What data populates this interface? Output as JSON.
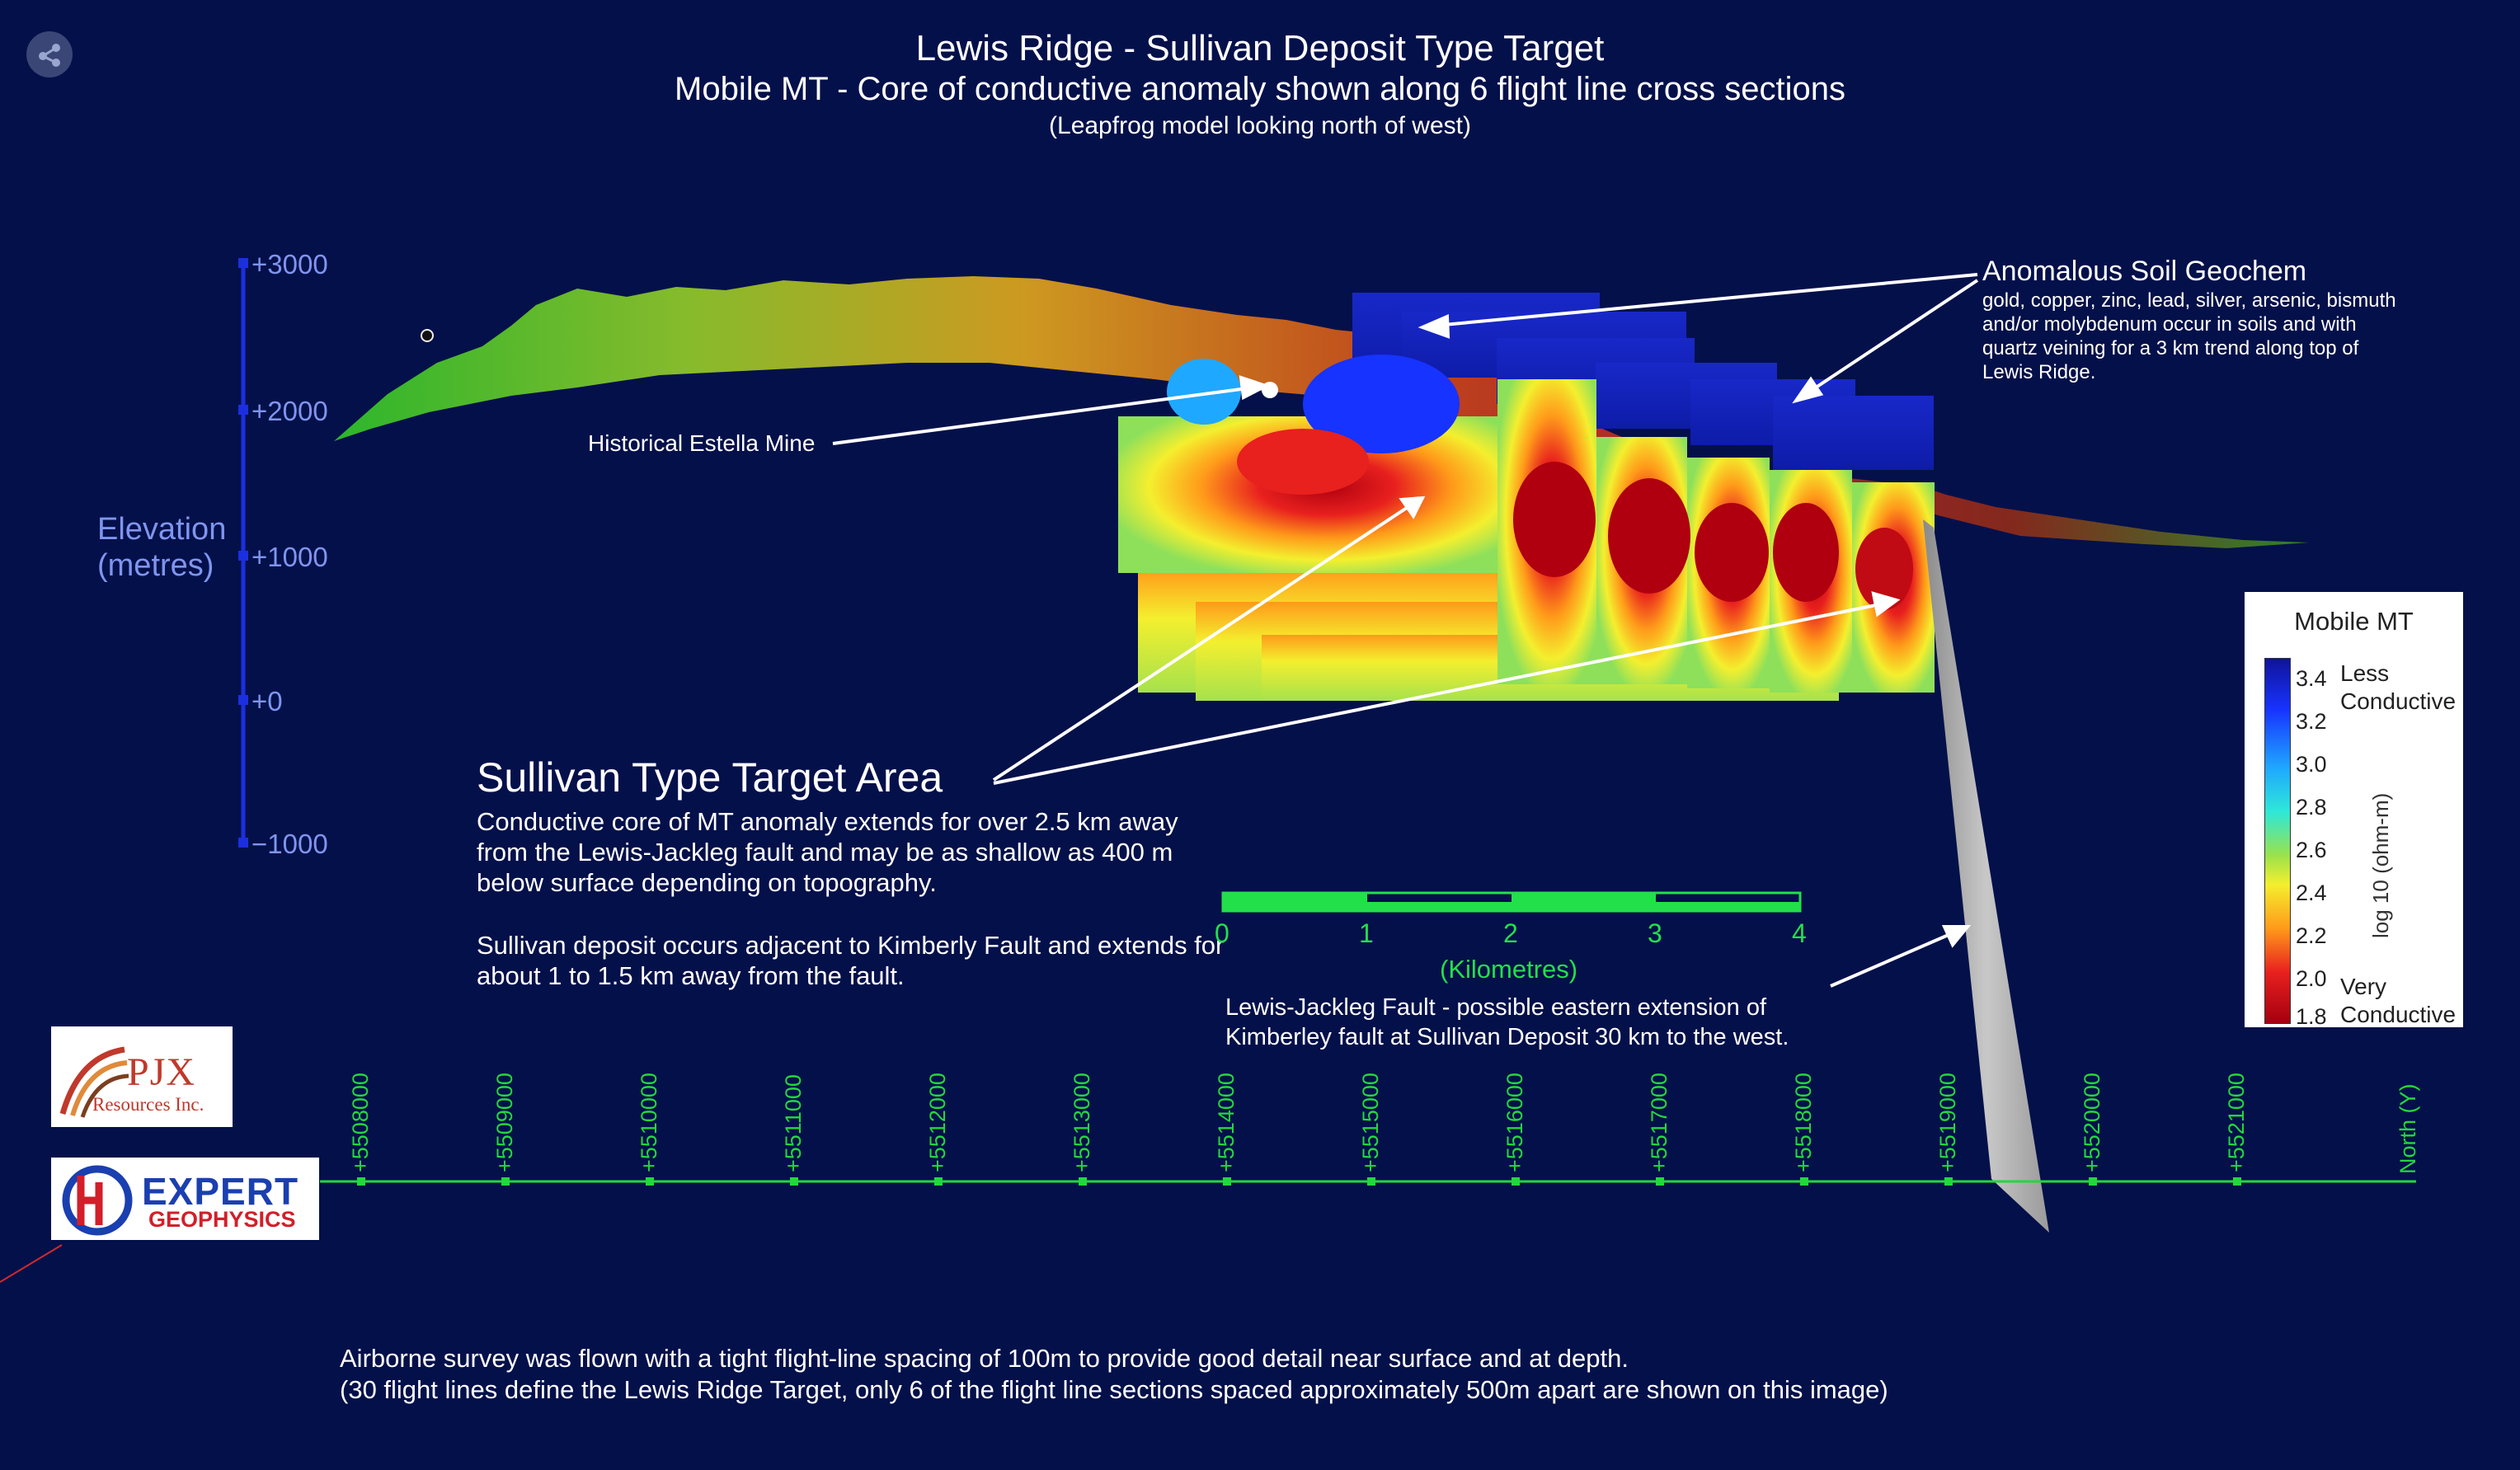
{
  "title": "Lewis Ridge - Sullivan Deposit Type Target",
  "subtitle": "Mobile MT -  Core of conductive anomaly shown along 6 flight line cross sections",
  "subtitle2": "(Leapfrog model looking north of west)",
  "elevation_axis": {
    "label_line1": "Elevation",
    "label_line2": "(metres)",
    "ticks": [
      "+3000",
      "+2000",
      "+1000",
      "+0",
      "−1000"
    ]
  },
  "annotations": {
    "soil_head": "Anomalous Soil Geochem",
    "soil_body": "gold, copper, zinc, lead, silver, arsenic, bismuth and/or molybdenum occur in soils and with quartz veining for a 3 km trend along top of Lewis Ridge.",
    "estella": "Historical Estella Mine",
    "target_head": "Sullivan Type Target Area",
    "target_p1": "Conductive core of MT anomaly extends for over 2.5 km away from the Lewis-Jackleg fault and may be as shallow as 400 m below surface depending on topography.",
    "target_p2": "Sullivan deposit occurs adjacent to Kimberly Fault and extends for about 1 to 1.5 km away from the fault.",
    "fault_line1": "Lewis-Jackleg Fault - possible eastern extension of",
    "fault_line2": "Kimberley fault at Sullivan Deposit 30 km to the west."
  },
  "scale_bar": {
    "labels": [
      "0",
      "1",
      "2",
      "3",
      "4"
    ],
    "unit": "(Kilometres)"
  },
  "north_axis": {
    "ticks": [
      "+5508000",
      "+5509000",
      "+5510000",
      "+5511000",
      "+5512000",
      "+5513000",
      "+5514000",
      "+5515000",
      "+5516000",
      "+5517000",
      "+5518000",
      "+5519000",
      "+5520000",
      "+5521000"
    ],
    "label": "North (Y)"
  },
  "legend": {
    "title": "Mobile MT",
    "ticks": [
      "3.4",
      "3.2",
      "3.0",
      "2.8",
      "2.6",
      "2.4",
      "2.2",
      "2.0",
      "1.8"
    ],
    "top_label_1": "Less",
    "top_label_2": "Conductive",
    "bottom_label_1": "Very",
    "bottom_label_2": "Conductive",
    "unit": "log 10 (ohm-m)"
  },
  "logos": {
    "pjx_main": "PJX",
    "pjx_sub": "Resources Inc.",
    "expert_1": "EXPERT",
    "expert_2": "GEOPHYSICS"
  },
  "footer": {
    "line1": "Airborne survey was flown with a tight flight-line spacing of 100m to provide good detail near surface and at depth.",
    "line2": "(30 flight lines define the Lewis Ridge Target, only 6 of the flight line sections spaced approximately 500m apart are shown on this image)"
  },
  "colors": {
    "background": "#04104a",
    "axis_blue": "#1c2fe0",
    "axis_text": "#7f95ef",
    "grid_green": "#22e04a"
  }
}
